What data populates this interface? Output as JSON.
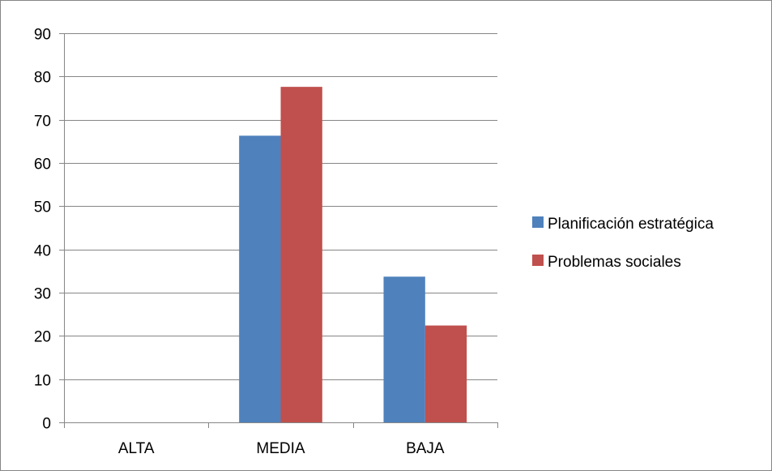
{
  "chart_data": {
    "type": "bar",
    "categories": [
      "ALTA",
      "MEDIA",
      "BAJA"
    ],
    "series": [
      {
        "name": "Planificación estratégica",
        "values": [
          0,
          66.3,
          33.7
        ],
        "color": "#4f81bd"
      },
      {
        "name": "Problemas sociales",
        "values": [
          0,
          77.6,
          22.4
        ],
        "color": "#c0504d"
      }
    ],
    "ylim": [
      0,
      90
    ],
    "yticks": [
      0,
      10,
      20,
      30,
      40,
      50,
      60,
      70,
      80,
      90
    ],
    "grid": true,
    "legend_position": "right",
    "gridline_color": "#868686"
  }
}
